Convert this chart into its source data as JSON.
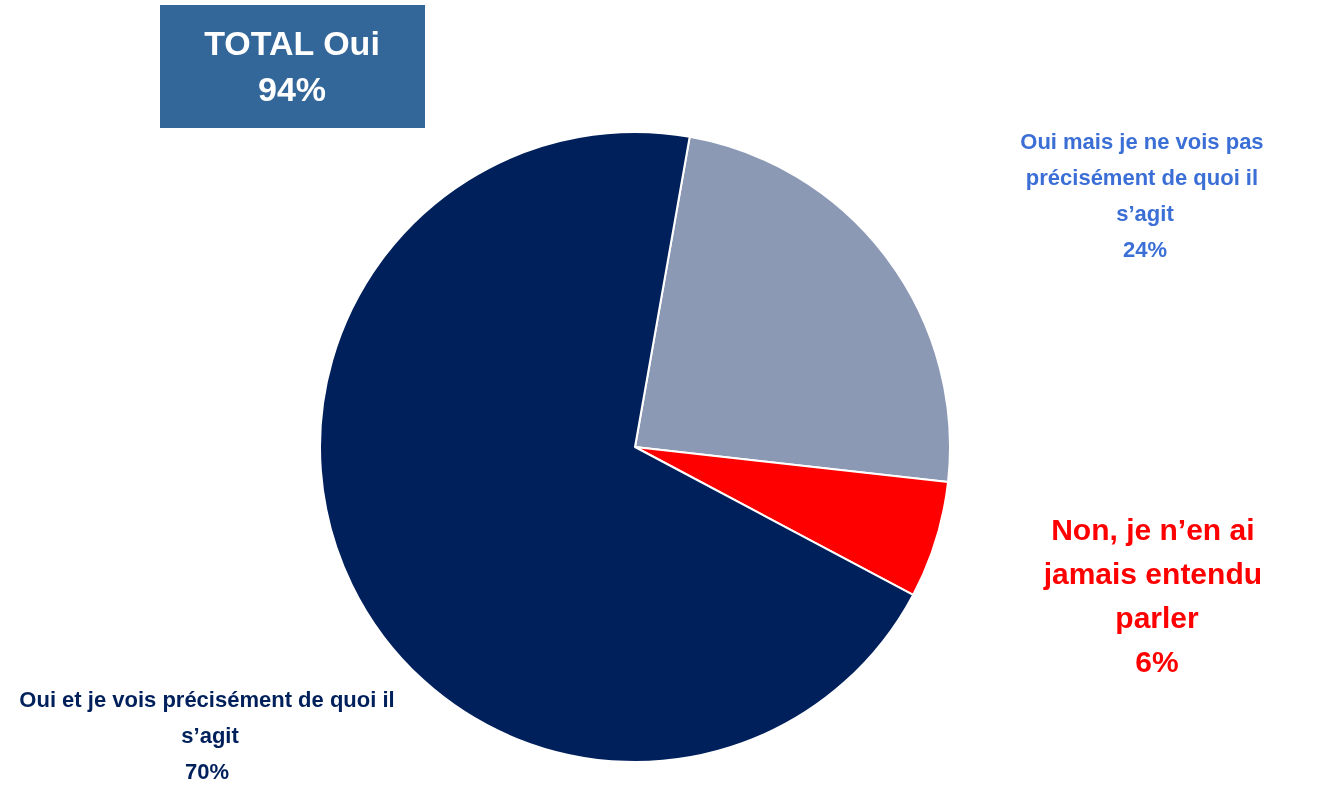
{
  "chart_data": {
    "type": "pie",
    "categories": [
      "Oui mais je ne vois pas précisément de quoi il s’agit",
      "Non, je n’en ai jamais entendu parler",
      "Oui et je vois précisément de quoi il s’agit"
    ],
    "values": [
      24,
      6,
      70
    ],
    "colors": [
      "#8c99b5",
      "#ff0000",
      "#00205b"
    ],
    "value_labels": [
      "24%",
      "6%",
      "70%"
    ],
    "legend": false,
    "annotations": [
      "TOTAL Oui\n94%"
    ]
  }
}
